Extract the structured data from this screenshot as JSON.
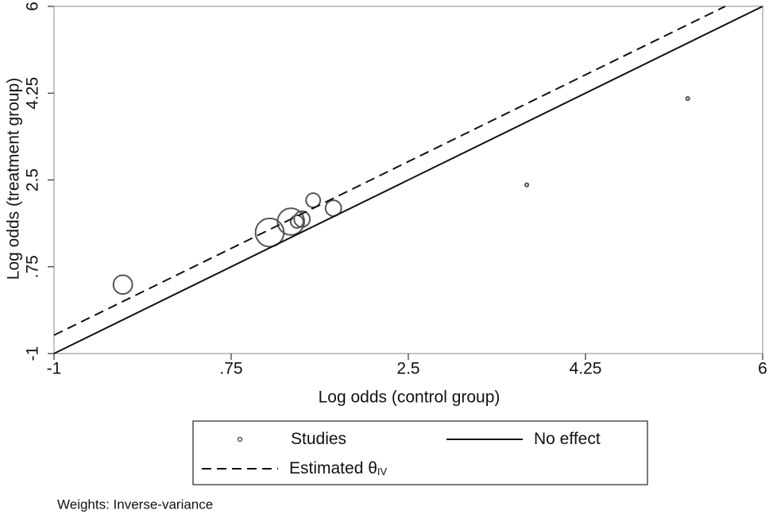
{
  "chart_data": {
    "type": "scatter",
    "xlabel": "Log odds (control group)",
    "ylabel": "Log odds (treatment group)",
    "xlim": [
      -1,
      6
    ],
    "ylim": [
      -1,
      6
    ],
    "xticks": [
      -1,
      {
        "value": 0.75,
        "label": ".75"
      },
      2.5,
      4.25,
      6
    ],
    "yticks": [
      -1,
      {
        "value": 0.75,
        "label": ".75"
      },
      2.5,
      4.25,
      6
    ],
    "series": [
      {
        "name": "Studies",
        "kind": "points",
        "color": "#555555",
        "x": [
          -0.32,
          1.13,
          1.34,
          1.4,
          1.45,
          1.56,
          1.76,
          3.67,
          5.26
        ],
        "values": [
          0.39,
          1.44,
          1.66,
          1.66,
          1.71,
          2.09,
          1.93,
          2.4,
          4.14
        ],
        "weights": [
          13.0,
          29.2,
          26.0,
          5.8,
          9.0,
          7.3,
          9.0,
          0.4,
          0.4
        ]
      },
      {
        "name": "No effect",
        "kind": "line",
        "dash": "solid",
        "color": "#111111",
        "x": [
          -1,
          6
        ],
        "values": [
          -1,
          6
        ]
      },
      {
        "name": "Estimated θ",
        "name_sub": "IV",
        "kind": "line",
        "dash": "dashed",
        "color": "#111111",
        "x": [
          -1,
          5.63
        ],
        "values": [
          -0.63,
          6
        ]
      }
    ],
    "note": "Weights: Inverse-variance"
  }
}
